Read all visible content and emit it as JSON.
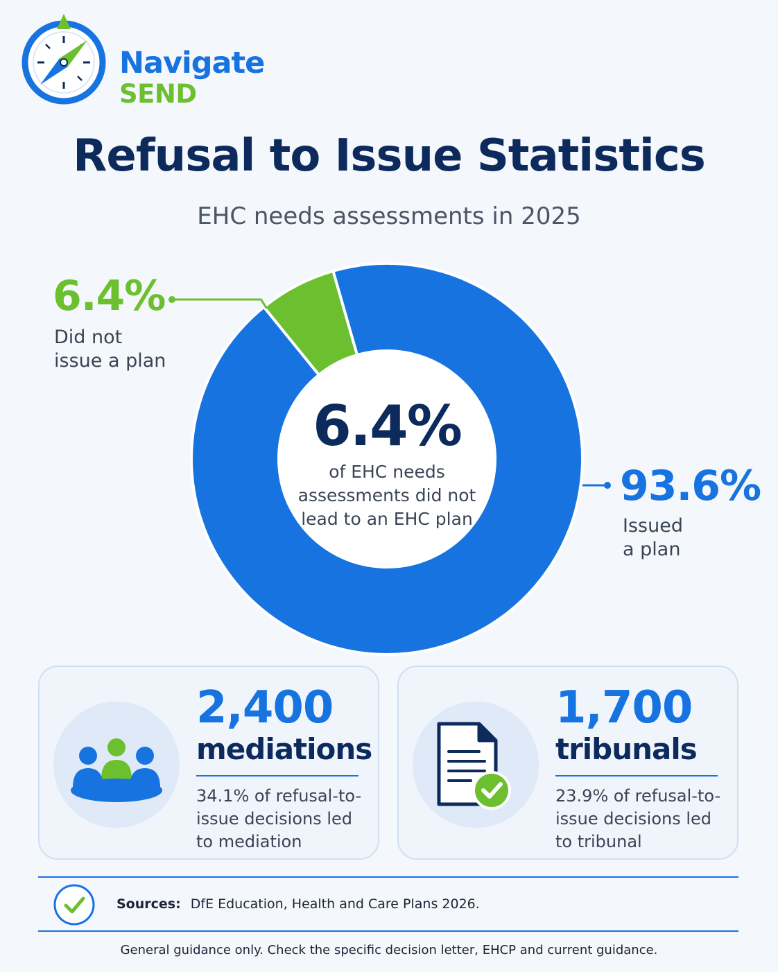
{
  "logo": {
    "word1": "Navigate",
    "word2": "SEND"
  },
  "header": {
    "title": "Refusal to Issue Statistics",
    "subtitle": "EHC needs assessments in 2025"
  },
  "chart_data": {
    "type": "pie",
    "title": "Refusal to Issue Statistics",
    "subtitle": "EHC needs assessments in 2025",
    "categories": [
      "Did not issue a plan",
      "Issued a plan"
    ],
    "values": [
      6.4,
      93.6
    ],
    "labels": [
      "6.4%",
      "93.6%"
    ],
    "colors": [
      "#6cbf2e",
      "#1673e0"
    ],
    "center_value": "6.4%",
    "center_text": "of EHC needs assessments did not lead to an EHC plan",
    "legend": "callouts"
  },
  "callouts": {
    "not_issued": {
      "pct": "6.4%",
      "label_line1": "Did not",
      "label_line2": "issue a plan"
    },
    "issued": {
      "pct": "93.6%",
      "label_line1": "Issued",
      "label_line2": "a plan"
    }
  },
  "center": {
    "pct": "6.4%",
    "line1": "of EHC needs",
    "line2": "assessments did not",
    "line3": "lead to an EHC plan"
  },
  "cards": {
    "mediations": {
      "number": "2,400",
      "noun": "mediations",
      "line1": "34.1% of refusal-to-",
      "line2": "issue decisions led",
      "line3": "to mediation",
      "icon": "people-meeting-icon"
    },
    "tribunals": {
      "number": "1,700",
      "noun": "tribunals",
      "line1": "23.9% of refusal-to-",
      "line2": "issue decisions led",
      "line3": "to tribunal",
      "icon": "document-check-icon"
    }
  },
  "sources": {
    "label": "Sources:",
    "text": "DfE Education, Health and Care Plans 2026.",
    "icon": "check-circle-icon"
  },
  "footer": "General guidance only. Check the specific decision letter, EHCP and current guidance.",
  "colors": {
    "navy": "#0d2a5c",
    "blue": "#1673e0",
    "green": "#6cbf2e"
  }
}
